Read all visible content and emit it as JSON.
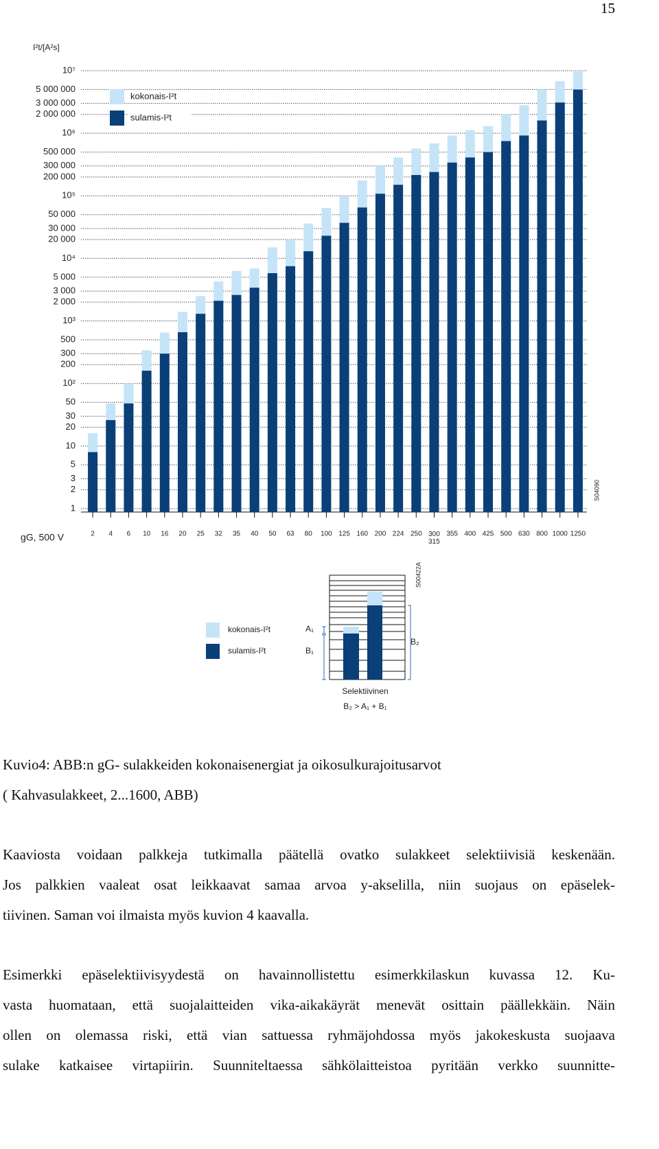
{
  "page_number": "15",
  "chart_data": {
    "type": "bar",
    "y_label": "I²t/[A²s]",
    "x_label": "gG, 500 V",
    "code": "S04090",
    "log_scale": true,
    "grid": true,
    "legend": "upper-left",
    "categories": [
      "2",
      "4",
      "6",
      "10",
      "16",
      "20",
      "25",
      "32",
      "35",
      "40",
      "50",
      "63",
      "80",
      "100",
      "125",
      "160",
      "200",
      "224",
      "250",
      "300\n315",
      "355",
      "400",
      "425",
      "500",
      "630",
      "800",
      "1000",
      "1250"
    ],
    "series": [
      {
        "name": "kokonais-I²t",
        "color": "#c6e4f7",
        "values": [
          16,
          48,
          100,
          340,
          650,
          1400,
          2500,
          4300,
          6300,
          6900,
          15000,
          20000,
          36000,
          64000,
          100000,
          176000,
          300000,
          410000,
          570000,
          690000,
          920000,
          1120000,
          1300000,
          2000000,
          2800000,
          5000000,
          6800000,
          10000000
        ]
      },
      {
        "name": "sulamis-I²t",
        "color": "#0b3f78",
        "values": [
          8,
          26,
          48,
          160,
          300,
          660,
          1300,
          2100,
          2600,
          3400,
          5800,
          7500,
          13000,
          23000,
          37000,
          65000,
          108000,
          150000,
          215000,
          240000,
          340000,
          410000,
          500000,
          750000,
          920000,
          1600000,
          3100000,
          5000000
        ]
      }
    ],
    "ylim": [
      1,
      10000000
    ],
    "yticks": [
      1,
      2,
      3,
      5,
      10,
      20,
      30,
      50,
      {
        "value": 100,
        "label": "10²"
      },
      200,
      300,
      500,
      {
        "value": 1000,
        "label": "10³"
      },
      {
        "value": 2000,
        "label": "2 000"
      },
      {
        "value": 3000,
        "label": "3 000"
      },
      {
        "value": 5000,
        "label": "5 000"
      },
      {
        "value": 10000,
        "label": "10⁴"
      },
      {
        "value": 20000,
        "label": "20 000"
      },
      {
        "value": 30000,
        "label": "30 000"
      },
      {
        "value": 50000,
        "label": "50 000"
      },
      {
        "value": 100000,
        "label": "10⁵"
      },
      {
        "value": 200000,
        "label": "200 000"
      },
      {
        "value": 300000,
        "label": "300 000"
      },
      {
        "value": 500000,
        "label": "500 000"
      },
      {
        "value": 1000000,
        "label": "10⁶"
      },
      {
        "value": 2000000,
        "label": "2 000 000"
      },
      {
        "value": 3000000,
        "label": "3 000 000"
      },
      {
        "value": 5000000,
        "label": "5 000 000"
      },
      {
        "value": 10000000,
        "label": "10⁷"
      }
    ]
  },
  "inset": {
    "legend": [
      "kokonais-I²t",
      "sulamis-I²t"
    ],
    "labels": [
      "A₁",
      "B₁",
      "B₂"
    ],
    "caption": "Selektiivinen",
    "formula": "B₂ > A₁ + B₁",
    "code": "S00422A"
  },
  "caption": [
    "Kuvio4: ABB:n gG- sulakkeiden kokonaisenergiat ja oikosulkurajoitusarvot",
    "( Kahvasulakkeet, 2...1600, ABB)"
  ],
  "paragraphs": [
    [
      "Kaaviosta voidaan palkkeja tutkimalla päätellä ovatko sulakkeet selektiivisiä keskenään.",
      "Jos palkkien vaaleat osat leikkaavat samaa arvoa y-akselilla, niin suojaus on epäselek-",
      "tiivinen. Saman voi ilmaista myös kuvion 4 kaavalla."
    ],
    [
      "Esimerkki epäselektiivisyydestä on havainnollistettu esimerkkilaskun kuvassa 12. Ku-",
      "vasta huomataan, että suojalaitteiden vika-aikakäyrät menevät osittain päällekkäin. Näin",
      "ollen on olemassa riski, että vian sattuessa ryhmäjohdossa myös jakokeskusta suojaava",
      "sulake katkaisee virtapiirin. Suunniteltaessa sähkölaitteistoa pyritään verkko suunnitte-"
    ]
  ]
}
